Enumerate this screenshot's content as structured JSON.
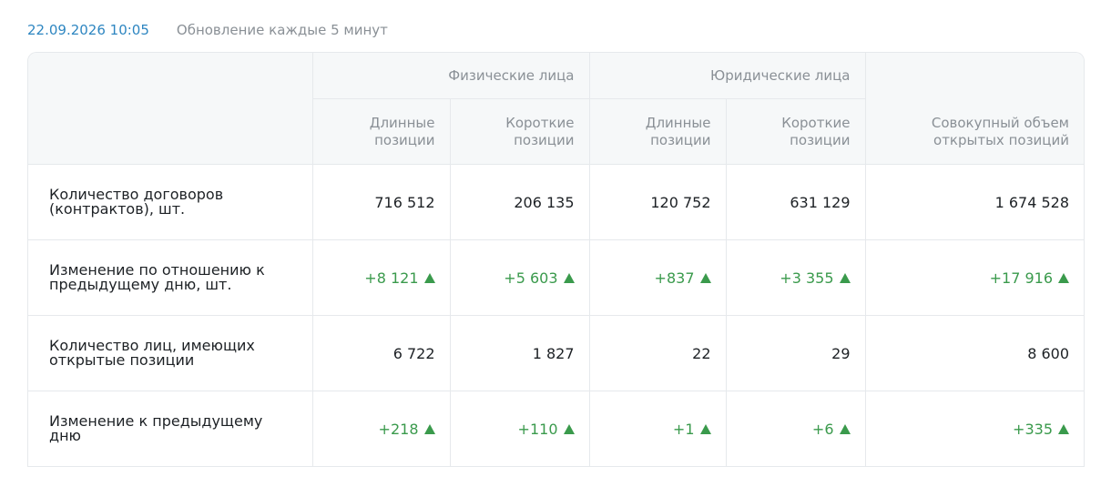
{
  "header": {
    "timestamp": "22.09.2026 10:05",
    "update_note": "Обновление каждые 5 минут"
  },
  "table": {
    "groups": [
      "Физические лица",
      "Юридические лица"
    ],
    "columns": [
      "Длинные позиции",
      "Короткие позиции",
      "Длинные позиции",
      "Короткие позиции",
      "Совокупный объем открытых позиций"
    ],
    "rows": [
      {
        "label": "Количество договоров (контрактов), шт.",
        "cells": [
          "716 512",
          "206 135",
          "120 752",
          "631 129",
          "1 674 528"
        ]
      },
      {
        "label": "Изменение по отношению к предыдущему дню, шт.",
        "cells": [
          "+8 121",
          "+5 603",
          "+837",
          "+3 355",
          "+17 916"
        ]
      },
      {
        "label": "Количество лиц, имеющих открытые позиции",
        "cells": [
          "6 722",
          "1 827",
          "22",
          "29",
          "8 600"
        ]
      },
      {
        "label": "Изменение к предыдущему дню",
        "cells": [
          "+218",
          "+110",
          "+1",
          "+6",
          "+335"
        ]
      }
    ]
  }
}
